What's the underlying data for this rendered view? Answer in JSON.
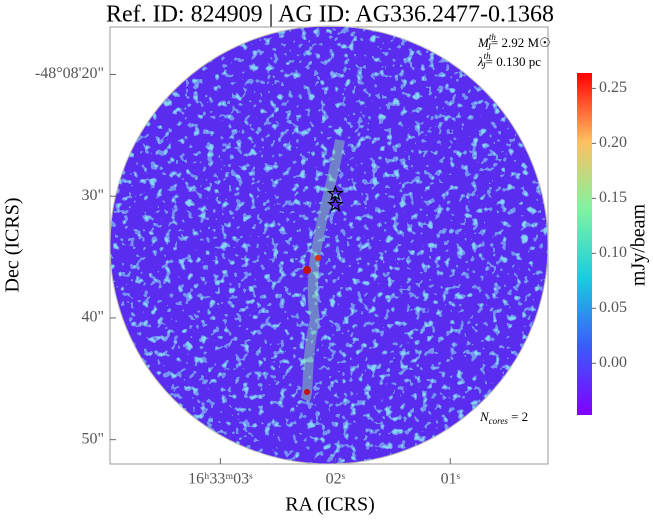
{
  "chart_data": {
    "type": "image",
    "title": "Ref. ID: 824909 | AG ID: AG336.2477-0.1368",
    "xlabel": "RA (ICRS)",
    "ylabel": "Dec (ICRS)",
    "xlim": [
      3.96,
      0.15
    ],
    "xticks": [
      {
        "value": 3,
        "label": "16ʰ33ᵐ03ˢ"
      },
      {
        "value": 2,
        "label": "02ˢ"
      },
      {
        "value": 1,
        "label": "01ˢ"
      }
    ],
    "ylim": [
      16.1,
      52.0
    ],
    "yticks": [
      {
        "value": 20,
        "label": "-48°08'20\""
      },
      {
        "value": 30,
        "label": "30\""
      },
      {
        "value": 40,
        "label": "40\""
      },
      {
        "value": 50,
        "label": "50\""
      }
    ],
    "colorbar_label": "mJy/beam",
    "clim": [
      -0.047,
      0.264
    ],
    "cticks": [
      {
        "value": 0,
        "label": "0.00"
      },
      {
        "value": 0.05,
        "label": "0.05"
      },
      {
        "value": 0.1,
        "label": "0.10"
      },
      {
        "value": 0.15,
        "label": "0.15"
      },
      {
        "value": 0.2,
        "label": "0.20"
      },
      {
        "value": 0.25,
        "label": "0.25"
      }
    ],
    "cores": {
      "x": [
        2.0,
        2.0
      ],
      "y": [
        29.8,
        30.7
      ]
    },
    "annotations": [
      {
        "symbol": "M",
        "sub": "J",
        "sup": "th",
        "text": "= 2.92 M☉"
      },
      {
        "symbol": "λ",
        "sub": "J",
        "sup": "th",
        "text": "= 0.130 pc"
      },
      {
        "symbol": "N",
        "sub": "cores",
        "text": " = 2"
      }
    ]
  }
}
